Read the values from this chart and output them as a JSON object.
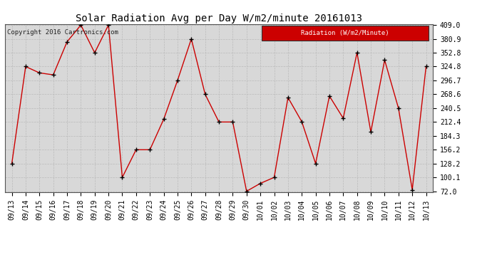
{
  "title": "Solar Radiation Avg per Day W/m2/minute 20161013",
  "copyright": "Copyright 2016 Cartronics.com",
  "legend_label": "Radiation (W/m2/Minute)",
  "legend_bg": "#cc0000",
  "legend_text_color": "#ffffff",
  "line_color": "#cc0000",
  "marker_color": "#000000",
  "bg_color": "#ffffff",
  "plot_bg_color": "#d8d8d8",
  "grid_color": "#bbbbbb",
  "labels": [
    "09/13",
    "09/14",
    "09/15",
    "09/16",
    "09/17",
    "09/18",
    "09/19",
    "09/20",
    "09/21",
    "09/22",
    "09/23",
    "09/24",
    "09/25",
    "09/26",
    "09/27",
    "09/28",
    "09/29",
    "09/30",
    "10/01",
    "10/02",
    "10/03",
    "10/04",
    "10/05",
    "10/06",
    "10/07",
    "10/08",
    "10/09",
    "10/10",
    "10/11",
    "10/12",
    "10/13"
  ],
  "values": [
    128.2,
    324.8,
    312.0,
    308.0,
    375.0,
    409.0,
    352.8,
    409.0,
    100.1,
    156.2,
    156.2,
    218.0,
    296.7,
    380.9,
    268.6,
    212.4,
    212.4,
    72.0,
    88.0,
    100.1,
    262.0,
    213.0,
    128.2,
    265.0,
    220.0,
    353.0,
    192.0,
    338.0,
    240.5,
    75.0,
    324.8
  ],
  "ylim_min": 72.0,
  "ylim_max": 409.0,
  "yticks": [
    72.0,
    100.1,
    128.2,
    156.2,
    184.3,
    212.4,
    240.5,
    268.6,
    296.7,
    324.8,
    352.8,
    380.9,
    409.0
  ],
  "title_fontsize": 10,
  "tick_fontsize": 7,
  "copyright_fontsize": 6.5
}
